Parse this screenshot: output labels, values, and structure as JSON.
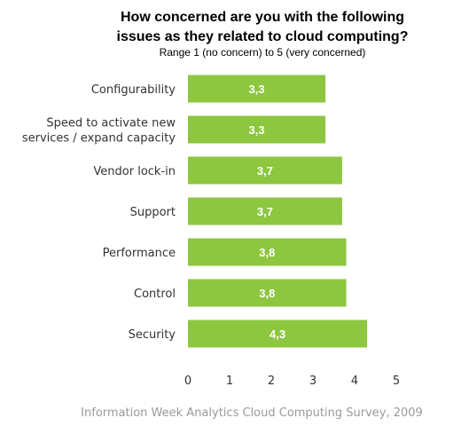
{
  "chart_data": {
    "type": "bar",
    "orientation": "horizontal",
    "title_line1": "How concerned are you with the following",
    "title_line2": "issues as they related to cloud computing?",
    "subtitle": "Range 1 (no concern) to 5 (very concerned)",
    "categories": [
      [
        "Configurability"
      ],
      [
        "Speed to activate new",
        "services / expand capacity"
      ],
      [
        "Vendor lock-in"
      ],
      [
        "Support"
      ],
      [
        "Performance"
      ],
      [
        "Control"
      ],
      [
        "Security"
      ]
    ],
    "values": [
      3.3,
      3.3,
      3.7,
      3.7,
      3.8,
      3.8,
      4.3
    ],
    "value_labels": [
      "3,3",
      "3,3",
      "3,7",
      "3,7",
      "3,8",
      "3,8",
      "4,3"
    ],
    "xlim": [
      0,
      5
    ],
    "xticks": [
      "0",
      "1",
      "2",
      "3",
      "4",
      "5"
    ],
    "grid": false,
    "legend": "none",
    "bar_color": "#8dc63f",
    "source": "Information Week Analytics Cloud Computing Survey, 2009"
  }
}
